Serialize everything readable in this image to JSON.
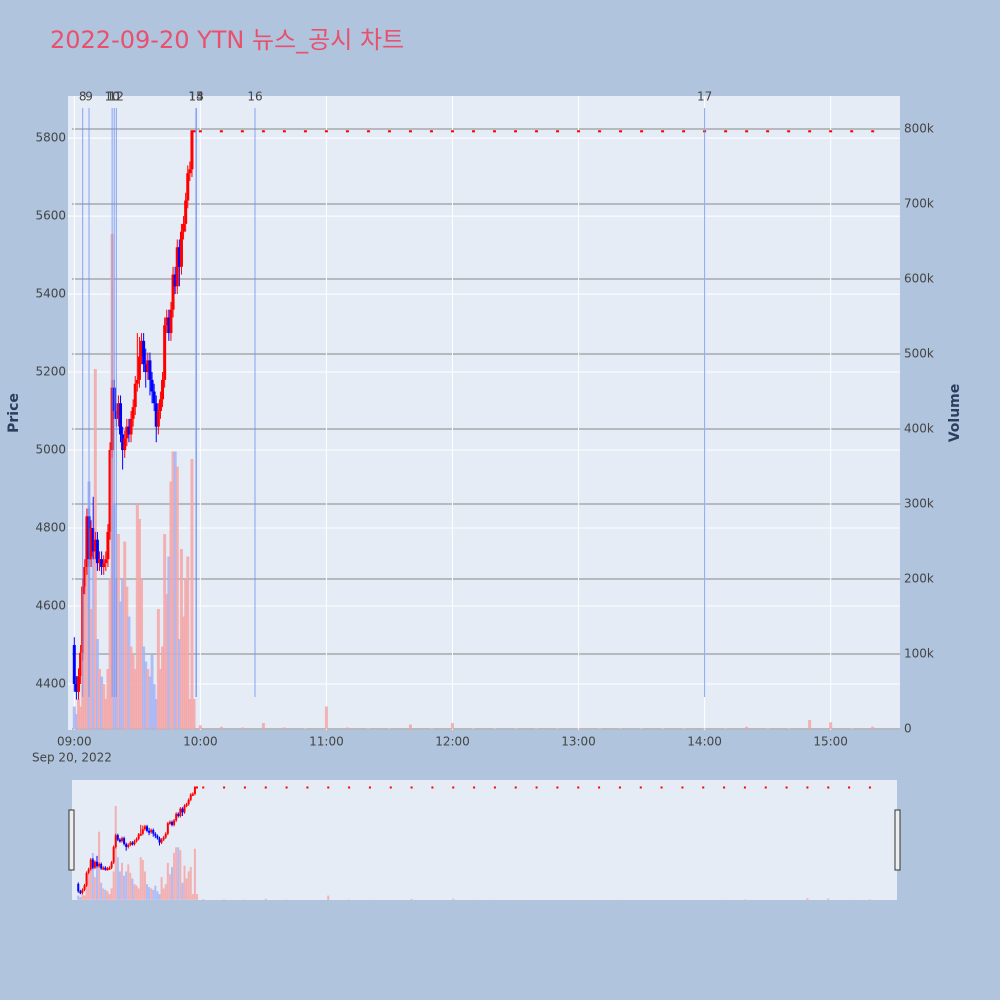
{
  "chart_data": {
    "type": "candlestick",
    "title": "2022-09-20 YTN 뉴스_공시 차트",
    "y_label": "Price",
    "y2_label": "Volume",
    "x_date_label": "Sep 20, 2022",
    "up_color": "#ff0000",
    "down_color": "#0000ff",
    "volume_up_color": "#f4a6a6",
    "volume_down_color": "#a6b4f4",
    "marker_color": "#6f8ff0",
    "grid": true,
    "x": [
      "09:00",
      "09:01",
      "09:02",
      "09:03",
      "09:04",
      "09:05",
      "09:06",
      "09:07",
      "09:08",
      "09:09",
      "09:10",
      "09:11",
      "09:12",
      "09:13",
      "09:14",
      "09:15",
      "09:16",
      "09:17",
      "09:18",
      "09:19",
      "09:20",
      "09:21",
      "09:22",
      "09:23",
      "09:24",
      "09:25",
      "09:26",
      "09:27",
      "09:28",
      "09:29",
      "09:30",
      "09:31",
      "09:32",
      "09:33",
      "09:34",
      "09:35",
      "09:36",
      "09:37",
      "09:38",
      "09:39",
      "09:40",
      "09:41",
      "09:42",
      "09:43",
      "09:44",
      "09:45",
      "09:46",
      "09:47",
      "09:48",
      "09:49",
      "09:50",
      "09:51",
      "09:52",
      "09:53",
      "09:54",
      "09:55",
      "09:56",
      "09:57",
      "10:00",
      "10:10",
      "10:20",
      "10:30",
      "10:40",
      "10:50",
      "11:00",
      "11:10",
      "11:20",
      "11:30",
      "11:40",
      "11:50",
      "12:00",
      "12:10",
      "12:20",
      "12:30",
      "12:40",
      "12:50",
      "13:00",
      "13:10",
      "13:20",
      "13:30",
      "13:40",
      "13:50",
      "14:00",
      "14:10",
      "14:20",
      "14:30",
      "14:40",
      "14:50",
      "15:00",
      "15:10",
      "15:20"
    ],
    "open": [
      4500,
      4400,
      4380,
      4420,
      4480,
      4650,
      4700,
      4830,
      4720,
      4800,
      4740,
      4770,
      4710,
      4720,
      4700,
      4710,
      4720,
      4790,
      5000,
      5160,
      5100,
      5080,
      5120,
      5040,
      5000,
      5030,
      5060,
      5040,
      5080,
      5110,
      5170,
      5180,
      5240,
      5280,
      5220,
      5200,
      5230,
      5180,
      5150,
      5120,
      5060,
      5100,
      5130,
      5180,
      5320,
      5340,
      5300,
      5360,
      5450,
      5420,
      5520,
      5470,
      5560,
      5580,
      5640,
      5710,
      5720,
      5820,
      5820,
      5820,
      5820,
      5820,
      5820,
      5820,
      5820,
      5820,
      5820,
      5820,
      5820,
      5820,
      5820,
      5820,
      5820,
      5820,
      5820,
      5820,
      5820,
      5820,
      5820,
      5820,
      5820,
      5820,
      5820,
      5820,
      5820,
      5820,
      5820,
      5820,
      5820,
      5820,
      5820
    ],
    "high": [
      4520,
      4420,
      4440,
      4500,
      4670,
      4720,
      4850,
      4850,
      4820,
      4880,
      4790,
      4790,
      4740,
      4740,
      4730,
      4740,
      4810,
      5020,
      5180,
      5180,
      5120,
      5140,
      5140,
      5060,
      5050,
      5080,
      5080,
      5100,
      5130,
      5190,
      5300,
      5290,
      5300,
      5300,
      5260,
      5250,
      5250,
      5200,
      5170,
      5140,
      5120,
      5150,
      5200,
      5340,
      5360,
      5360,
      5380,
      5470,
      5470,
      5540,
      5540,
      5580,
      5600,
      5660,
      5730,
      5740,
      5820,
      5820,
      5820,
      5820,
      5820,
      5820,
      5820,
      5820,
      5820,
      5820,
      5820,
      5820,
      5820,
      5820,
      5820,
      5820,
      5820,
      5820,
      5820,
      5820,
      5820,
      5820,
      5820,
      5820,
      5820,
      5820,
      5820,
      5820,
      5820,
      5820,
      5820,
      5820,
      5820,
      5820,
      5820
    ],
    "low": [
      4380,
      4360,
      4360,
      4400,
      4460,
      4630,
      4680,
      4700,
      4700,
      4720,
      4720,
      4690,
      4690,
      4680,
      4680,
      4690,
      4700,
      4770,
      4980,
      5080,
      5060,
      5060,
      5020,
      4950,
      4980,
      5010,
      5020,
      5020,
      5060,
      5090,
      5150,
      5160,
      5220,
      5200,
      5160,
      5180,
      5140,
      5120,
      5100,
      5020,
      5040,
      5080,
      5110,
      5160,
      5300,
      5280,
      5280,
      5340,
      5400,
      5400,
      5420,
      5450,
      5540,
      5560,
      5620,
      5690,
      5700,
      5820,
      5820,
      5820,
      5820,
      5820,
      5820,
      5820,
      5820,
      5820,
      5820,
      5820,
      5820,
      5820,
      5820,
      5820,
      5820,
      5820,
      5820,
      5820,
      5820,
      5820,
      5820,
      5820,
      5820,
      5820,
      5820,
      5820,
      5820,
      5820,
      5820,
      5820,
      5820,
      5820,
      5820
    ],
    "close": [
      4400,
      4380,
      4420,
      4480,
      4650,
      4700,
      4830,
      4720,
      4800,
      4740,
      4770,
      4710,
      4720,
      4700,
      4710,
      4720,
      4790,
      5000,
      5160,
      5100,
      5080,
      5120,
      5040,
      5000,
      5030,
      5060,
      5040,
      5080,
      5110,
      5170,
      5180,
      5240,
      5280,
      5220,
      5200,
      5230,
      5180,
      5150,
      5120,
      5060,
      5100,
      5130,
      5180,
      5320,
      5340,
      5300,
      5360,
      5450,
      5420,
      5520,
      5470,
      5560,
      5580,
      5640,
      5710,
      5720,
      5820,
      5820,
      5820,
      5820,
      5820,
      5820,
      5820,
      5820,
      5820,
      5820,
      5820,
      5820,
      5820,
      5820,
      5820,
      5820,
      5820,
      5820,
      5820,
      5820,
      5820,
      5820,
      5820,
      5820,
      5820,
      5820,
      5820,
      5820,
      5820,
      5820,
      5820,
      5820,
      5820,
      5820,
      5820
    ],
    "volume": [
      30000,
      20000,
      40000,
      30000,
      150000,
      180000,
      250000,
      330000,
      160000,
      230000,
      480000,
      120000,
      80000,
      70000,
      60000,
      40000,
      80000,
      200000,
      660000,
      300000,
      200000,
      260000,
      170000,
      200000,
      250000,
      190000,
      150000,
      110000,
      100000,
      80000,
      300000,
      280000,
      200000,
      110000,
      90000,
      80000,
      70000,
      100000,
      60000,
      40000,
      160000,
      80000,
      110000,
      260000,
      180000,
      230000,
      330000,
      370000,
      370000,
      350000,
      120000,
      240000,
      150000,
      200000,
      230000,
      40000,
      360000,
      40000,
      5000,
      3000,
      2000,
      8000,
      2000,
      1000,
      30000,
      2000,
      1000,
      1000,
      6000,
      1000,
      8000,
      1000,
      1000,
      1000,
      1000,
      1000,
      1000,
      1000,
      1000,
      1000,
      1000,
      1000,
      1000,
      1000,
      3000,
      1000,
      1000,
      12000,
      9000,
      1000,
      3000
    ],
    "markers": [
      {
        "label": "8",
        "x": "09:04"
      },
      {
        "label": "9",
        "x": "09:07"
      },
      {
        "label": "10",
        "x": "09:18"
      },
      {
        "label": "11",
        "x": "09:19"
      },
      {
        "label": "12",
        "x": "09:20"
      },
      {
        "label": "13",
        "x": "09:58"
      },
      {
        "label": "14",
        "x": "09:58"
      },
      {
        "label": "15",
        "x": "09:58"
      },
      {
        "label": "16",
        "x": "10:26"
      },
      {
        "label": "17",
        "x": "14:00"
      }
    ],
    "xlim": [
      "08:57",
      "15:33"
    ],
    "xticks": [
      "09:00",
      "10:00",
      "11:00",
      "12:00",
      "13:00",
      "14:00",
      "15:00"
    ],
    "ylim": [
      4282,
      5908
    ],
    "yticks": [
      4400,
      4600,
      4800,
      5000,
      5200,
      5400,
      5600,
      5800
    ],
    "y2lim": [
      -1300,
      844000
    ],
    "y2ticks": [
      0,
      {
        "value": 100000,
        "label": "100k"
      },
      {
        "value": 200000,
        "label": "200k"
      },
      {
        "value": 300000,
        "label": "300k"
      },
      {
        "value": 400000,
        "label": "400k"
      },
      {
        "value": 500000,
        "label": "500k"
      },
      {
        "value": 600000,
        "label": "600k"
      },
      {
        "value": 700000,
        "label": "700k"
      },
      {
        "value": 800000,
        "label": "800k"
      }
    ]
  }
}
